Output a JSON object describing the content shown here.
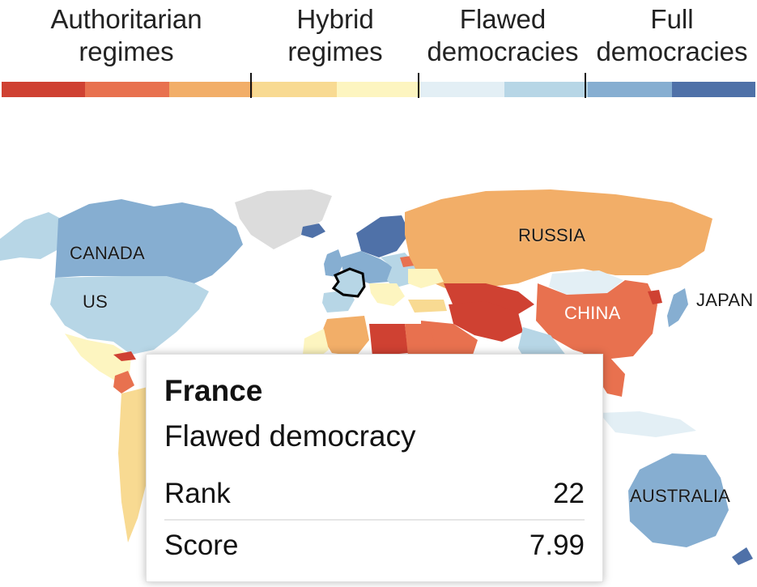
{
  "legend": {
    "groups": [
      {
        "line1": "Authoritarian",
        "line2": "regimes"
      },
      {
        "line1": "Hybrid",
        "line2": "regimes"
      },
      {
        "line1": "Flawed",
        "line2": "democracies"
      },
      {
        "line1": "Full",
        "line2": "democracies"
      }
    ],
    "swatches": [
      "#cf4132",
      "#e8714f",
      "#f2ae68",
      "#f8da92",
      "#fdf5c0",
      "#e3eff5",
      "#b7d6e6",
      "#86aed1",
      "#4f71a8"
    ]
  },
  "map": {
    "labels": {
      "canada": "CANADA",
      "us": "US",
      "russia": "RUSSIA",
      "china": "CHINA",
      "japan": "JAPAN",
      "australia": "AUSTRALIA"
    },
    "highlighted_country": "France"
  },
  "tooltip": {
    "country": "France",
    "classification": "Flawed democracy",
    "rank_label": "Rank",
    "rank_value": "22",
    "score_label": "Score",
    "score_value": "7.99"
  }
}
